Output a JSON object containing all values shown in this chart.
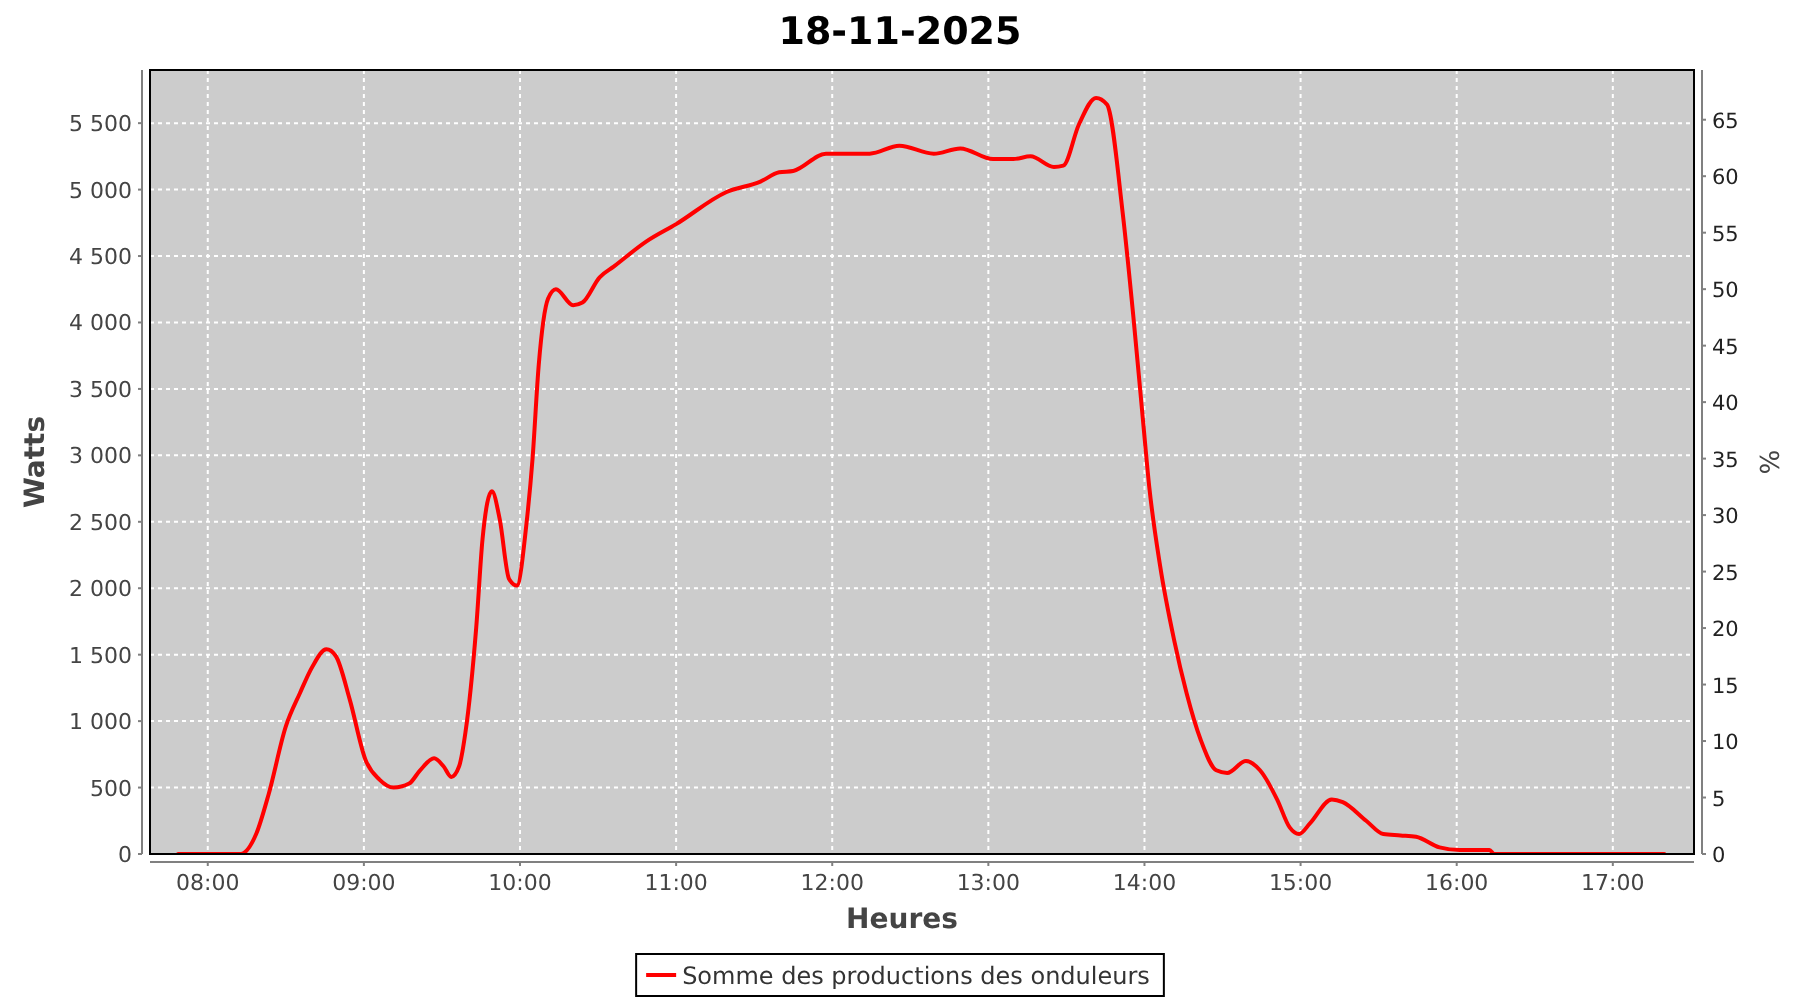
{
  "chart_data": {
    "type": "line",
    "title": "18-11-2025",
    "xlabel": "Heures",
    "ylabel": "Watts",
    "y2label": "%",
    "xlim": [
      7.63,
      17.52
    ],
    "xticks": [
      {
        "value": 8,
        "label": "08:00"
      },
      {
        "value": 9,
        "label": "09:00"
      },
      {
        "value": 10,
        "label": "10:00"
      },
      {
        "value": 11,
        "label": "11:00"
      },
      {
        "value": 12,
        "label": "12:00"
      },
      {
        "value": 13,
        "label": "13:00"
      },
      {
        "value": 14,
        "label": "14:00"
      },
      {
        "value": 15,
        "label": "15:00"
      },
      {
        "value": 16,
        "label": "16:00"
      },
      {
        "value": 17,
        "label": "17:00"
      }
    ],
    "ylim": [
      0,
      5900
    ],
    "yticks": [
      0,
      500,
      {
        "value": 1000,
        "label": "1 000"
      },
      {
        "value": 1500,
        "label": "1 500"
      },
      {
        "value": 2000,
        "label": "2 000"
      },
      {
        "value": 2500,
        "label": "2 500"
      },
      {
        "value": 3000,
        "label": "3 000"
      },
      {
        "value": 3500,
        "label": "3 500"
      },
      {
        "value": 4000,
        "label": "4 000"
      },
      {
        "value": 4500,
        "label": "4 500"
      },
      {
        "value": 5000,
        "label": "5 000"
      },
      {
        "value": 5500,
        "label": "5 500"
      }
    ],
    "y2lim": [
      0,
      69.4
    ],
    "y2ticks": [
      0,
      5,
      10,
      15,
      20,
      25,
      30,
      35,
      40,
      45,
      50,
      55,
      60,
      65
    ],
    "grid": true,
    "legend": "bottom",
    "line_style": "solid",
    "x": [
      7.81,
      8.21,
      8.31,
      8.39,
      8.5,
      8.59,
      8.67,
      8.76,
      8.82,
      8.91,
      9.01,
      9.1,
      9.19,
      9.29,
      9.36,
      9.45,
      9.51,
      9.56,
      9.61,
      9.65,
      9.72,
      9.76,
      9.82,
      9.87,
      9.93,
      9.98,
      10.04,
      10.08,
      10.12,
      10.18,
      10.23,
      10.34,
      10.4,
      10.51,
      10.6,
      10.81,
      11.0,
      11.32,
      11.54,
      11.66,
      11.75,
      11.96,
      12.13,
      12.24,
      12.43,
      12.65,
      12.82,
      13.03,
      13.16,
      13.27,
      13.42,
      13.48,
      13.58,
      13.69,
      13.76,
      13.86,
      13.93,
      13.99,
      14.03,
      14.1,
      14.19,
      14.27,
      14.36,
      14.46,
      14.53,
      14.65,
      14.74,
      14.85,
      14.93,
      14.99,
      15.06,
      15.2,
      15.27,
      15.42,
      15.53,
      15.64,
      15.74,
      15.89,
      16.02,
      16.21,
      16.24,
      17.33
    ],
    "series": [
      {
        "name": "Somme des productions des onduleurs",
        "color": "#ff0000",
        "values": [
          0,
          0,
          150,
          450,
          960,
          1210,
          1410,
          1540,
          1490,
          1160,
          710,
          560,
          500,
          530,
          630,
          720,
          660,
          580,
          660,
          910,
          1710,
          2370,
          2730,
          2520,
          2070,
          2020,
          2470,
          2970,
          3680,
          4180,
          4250,
          4130,
          4150,
          4340,
          4420,
          4610,
          4740,
          4980,
          5060,
          5130,
          5140,
          5270,
          5270,
          5270,
          5330,
          5270,
          5310,
          5230,
          5230,
          5250,
          5170,
          5180,
          5490,
          5690,
          5640,
          4830,
          4030,
          3270,
          2770,
          2170,
          1610,
          1210,
          860,
          630,
          610,
          700,
          630,
          410,
          200,
          150,
          230,
          410,
          390,
          250,
          150,
          140,
          130,
          50,
          30,
          30,
          0,
          0
        ]
      }
    ]
  }
}
